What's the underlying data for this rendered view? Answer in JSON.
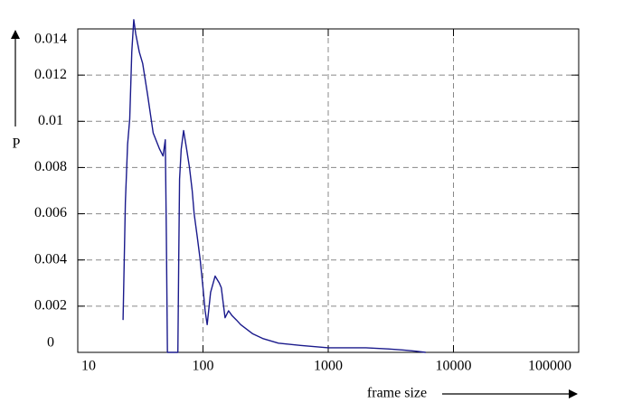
{
  "chart_data": {
    "type": "line",
    "xlabel": "frame size",
    "ylabel": "P",
    "x": [
      23,
      24,
      25,
      26,
      27,
      28,
      29,
      31,
      33,
      36,
      40,
      45,
      48,
      50,
      51,
      52,
      55,
      60,
      63,
      64,
      65,
      67,
      70,
      74,
      78,
      82,
      85,
      90,
      95,
      100,
      104,
      108,
      115,
      125,
      135,
      140,
      150,
      160,
      170,
      185,
      200,
      250,
      300,
      400,
      600,
      1000,
      2000,
      3000,
      4000,
      5000,
      6000
    ],
    "series": [
      {
        "color": "#1a1a8c",
        "values": [
          0.0014,
          0.0065,
          0.009,
          0.0101,
          0.013,
          0.0144,
          0.0138,
          0.013,
          0.0125,
          0.0112,
          0.0095,
          0.0088,
          0.0085,
          0.0092,
          0.005,
          0,
          0,
          0,
          0,
          0.004,
          0.0075,
          0.0088,
          0.0096,
          0.0088,
          0.008,
          0.007,
          0.006,
          0.005,
          0.004,
          0.0028,
          0.0018,
          0.0012,
          0.0026,
          0.0033,
          0.003,
          0.0028,
          0.0015,
          0.0018,
          0.0016,
          0.0014,
          0.0012,
          0.0008,
          0.0006,
          0.0004,
          0.0003,
          0.0002,
          0.0002,
          0.00015,
          0.0001,
          5e-05,
          0
        ]
      }
    ],
    "xscale": "log",
    "xlim": [
      10,
      100000
    ],
    "xticks": [
      10,
      100,
      1000,
      10000,
      100000
    ],
    "ylim": [
      0,
      0.014
    ],
    "yticks": [
      0,
      0.002,
      0.004,
      0.006,
      0.008,
      0.01,
      0.012,
      0.014
    ],
    "grid": true
  }
}
